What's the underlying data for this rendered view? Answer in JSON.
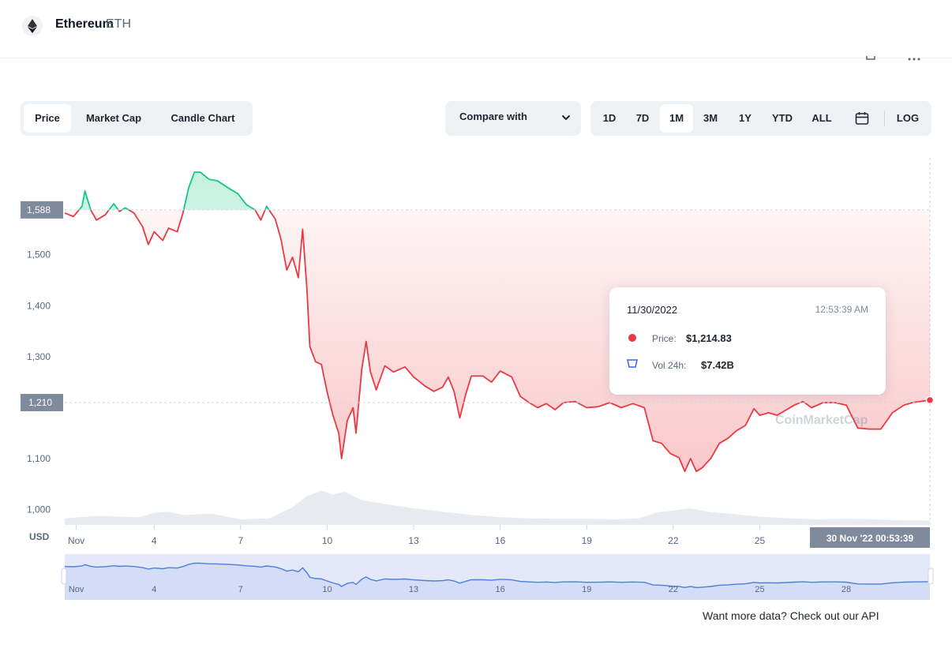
{
  "header": {
    "coin_name": "Ethereum",
    "coin_symbol": "ETH",
    "logo_icon": "ethereum-icon",
    "toolbar_icons": [
      "fullscreen-icon",
      "more-icon"
    ]
  },
  "tabs": [
    {
      "label": "Price",
      "active": true
    },
    {
      "label": "Market Cap",
      "active": false
    },
    {
      "label": "Candle Chart",
      "active": false
    }
  ],
  "compare": {
    "label": "Compare with",
    "icon": "chevron-down-icon"
  },
  "ranges": [
    {
      "label": "1D",
      "active": false
    },
    {
      "label": "7D",
      "active": false
    },
    {
      "label": "1M",
      "active": true
    },
    {
      "label": "3M",
      "active": false
    },
    {
      "label": "1Y",
      "active": false
    },
    {
      "label": "YTD",
      "active": false
    },
    {
      "label": "ALL",
      "active": false
    }
  ],
  "calendar_icon": "calendar-icon",
  "log_label": "LOG",
  "tooltip": {
    "date": "11/30/2022",
    "time": "12:53:39 AM",
    "price_label": "Price:",
    "price_value": "$1,214.83",
    "vol_label": "Vol 24h:",
    "vol_value": "$7.42B"
  },
  "watermark": "CoinMarketCap",
  "api_note": "Want more data? Check out our API",
  "colors": {
    "up": "#16c784",
    "down": "#ea3943",
    "volume": "#e7eaf0",
    "navigator": "#4f7de0",
    "tag_bg": "#808a9d"
  },
  "chart_data": {
    "type": "line",
    "unit_label": "USD",
    "y_ticks": [
      "1,000",
      "1,100",
      "1,300",
      "1,400",
      "1,500"
    ],
    "ylim": [
      970,
      1690
    ],
    "reference_price": 1588,
    "reference_label": "1,588",
    "current_price": 1210,
    "current_label": "1,210",
    "x_ticks": [
      {
        "label": "Nov",
        "x": 1.3
      },
      {
        "label": "4",
        "x": 4
      },
      {
        "label": "7",
        "x": 7
      },
      {
        "label": "10",
        "x": 10
      },
      {
        "label": "13",
        "x": 13
      },
      {
        "label": "16",
        "x": 16
      },
      {
        "label": "19",
        "x": 19
      },
      {
        "label": "22",
        "x": 22
      },
      {
        "label": "25",
        "x": 25
      }
    ],
    "navigator_ticks": [
      {
        "label": "Nov",
        "x": 1.3
      },
      {
        "label": "4",
        "x": 4
      },
      {
        "label": "7",
        "x": 7
      },
      {
        "label": "10",
        "x": 10
      },
      {
        "label": "13",
        "x": 13
      },
      {
        "label": "16",
        "x": 16
      },
      {
        "label": "19",
        "x": 19
      },
      {
        "label": "22",
        "x": 22
      },
      {
        "label": "25",
        "x": 25
      },
      {
        "label": "28",
        "x": 28
      }
    ],
    "xlim": [
      0.9,
      30.9
    ],
    "crosshair_label": "30 Nov '22   00:53:39",
    "series": [
      {
        "points": [
          [
            0.9,
            1582
          ],
          [
            1.2,
            1575
          ],
          [
            1.5,
            1595
          ],
          [
            1.6,
            1625
          ],
          [
            1.8,
            1588
          ],
          [
            2.0,
            1568
          ],
          [
            2.3,
            1578
          ],
          [
            2.6,
            1600
          ],
          [
            2.8,
            1585
          ],
          [
            3.0,
            1592
          ],
          [
            3.3,
            1582
          ],
          [
            3.6,
            1555
          ],
          [
            3.8,
            1520
          ],
          [
            4.0,
            1545
          ],
          [
            4.3,
            1528
          ],
          [
            4.5,
            1552
          ],
          [
            4.8,
            1545
          ],
          [
            5.0,
            1582
          ],
          [
            5.2,
            1632
          ],
          [
            5.4,
            1662
          ],
          [
            5.6,
            1662
          ],
          [
            5.9,
            1648
          ],
          [
            6.2,
            1645
          ],
          [
            6.6,
            1630
          ],
          [
            6.9,
            1620
          ],
          [
            7.2,
            1598
          ],
          [
            7.5,
            1588
          ],
          [
            7.7,
            1568
          ],
          [
            7.9,
            1595
          ],
          [
            8.2,
            1570
          ],
          [
            8.4,
            1530
          ],
          [
            8.6,
            1470
          ],
          [
            8.8,
            1495
          ],
          [
            9.0,
            1455
          ],
          [
            9.15,
            1550
          ],
          [
            9.3,
            1430
          ],
          [
            9.4,
            1320
          ],
          [
            9.6,
            1290
          ],
          [
            9.8,
            1285
          ],
          [
            10.0,
            1230
          ],
          [
            10.2,
            1185
          ],
          [
            10.4,
            1150
          ],
          [
            10.5,
            1100
          ],
          [
            10.7,
            1175
          ],
          [
            10.9,
            1200
          ],
          [
            11.0,
            1150
          ],
          [
            11.2,
            1275
          ],
          [
            11.35,
            1330
          ],
          [
            11.5,
            1270
          ],
          [
            11.7,
            1235
          ],
          [
            12.0,
            1282
          ],
          [
            12.3,
            1270
          ],
          [
            12.7,
            1280
          ],
          [
            13.0,
            1260
          ],
          [
            13.4,
            1242
          ],
          [
            13.7,
            1232
          ],
          [
            14.0,
            1240
          ],
          [
            14.2,
            1260
          ],
          [
            14.4,
            1232
          ],
          [
            14.6,
            1180
          ],
          [
            14.8,
            1225
          ],
          [
            15.0,
            1262
          ],
          [
            15.4,
            1262
          ],
          [
            15.7,
            1250
          ],
          [
            16.0,
            1272
          ],
          [
            16.4,
            1260
          ],
          [
            16.7,
            1222
          ],
          [
            17.0,
            1210
          ],
          [
            17.3,
            1200
          ],
          [
            17.6,
            1208
          ],
          [
            17.9,
            1196
          ],
          [
            18.2,
            1210
          ],
          [
            18.6,
            1212
          ],
          [
            19.0,
            1200
          ],
          [
            19.4,
            1202
          ],
          [
            19.8,
            1210
          ],
          [
            20.2,
            1200
          ],
          [
            20.6,
            1208
          ],
          [
            21.0,
            1200
          ],
          [
            21.3,
            1135
          ],
          [
            21.6,
            1130
          ],
          [
            21.9,
            1110
          ],
          [
            22.2,
            1102
          ],
          [
            22.4,
            1075
          ],
          [
            22.6,
            1100
          ],
          [
            22.8,
            1075
          ],
          [
            23.0,
            1082
          ],
          [
            23.3,
            1100
          ],
          [
            23.6,
            1130
          ],
          [
            23.9,
            1140
          ],
          [
            24.2,
            1155
          ],
          [
            24.5,
            1165
          ],
          [
            24.8,
            1198
          ],
          [
            25.0,
            1185
          ],
          [
            25.3,
            1190
          ],
          [
            25.6,
            1185
          ],
          [
            25.9,
            1195
          ],
          [
            26.2,
            1205
          ],
          [
            26.5,
            1212
          ],
          [
            26.8,
            1200
          ],
          [
            27.2,
            1210
          ],
          [
            27.6,
            1210
          ],
          [
            28.0,
            1205
          ],
          [
            28.4,
            1160
          ],
          [
            28.8,
            1158
          ],
          [
            29.2,
            1158
          ],
          [
            29.6,
            1190
          ],
          [
            30.0,
            1205
          ],
          [
            30.3,
            1210
          ],
          [
            30.9,
            1214.83
          ]
        ]
      }
    ],
    "volume": [
      [
        0.9,
        0.12
      ],
      [
        2.0,
        0.16
      ],
      [
        3.5,
        0.14
      ],
      [
        4.0,
        0.22
      ],
      [
        4.5,
        0.24
      ],
      [
        5.0,
        0.18
      ],
      [
        6.0,
        0.2
      ],
      [
        7.0,
        0.1
      ],
      [
        8.0,
        0.12
      ],
      [
        8.8,
        0.32
      ],
      [
        9.3,
        0.52
      ],
      [
        9.8,
        0.62
      ],
      [
        10.2,
        0.55
      ],
      [
        10.6,
        0.6
      ],
      [
        11.2,
        0.45
      ],
      [
        12.0,
        0.38
      ],
      [
        13.0,
        0.3
      ],
      [
        14.0,
        0.24
      ],
      [
        15.0,
        0.18
      ],
      [
        16.0,
        0.14
      ],
      [
        17.0,
        0.12
      ],
      [
        18.0,
        0.11
      ],
      [
        19.0,
        0.11
      ],
      [
        20.0,
        0.1
      ],
      [
        20.8,
        0.12
      ],
      [
        21.4,
        0.22
      ],
      [
        22.0,
        0.26
      ],
      [
        22.6,
        0.3
      ],
      [
        23.2,
        0.24
      ],
      [
        24.0,
        0.2
      ],
      [
        25.0,
        0.15
      ],
      [
        26.0,
        0.12
      ],
      [
        27.0,
        0.1
      ],
      [
        28.0,
        0.11
      ],
      [
        29.0,
        0.1
      ],
      [
        30.0,
        0.08
      ],
      [
        30.9,
        0.08
      ]
    ]
  }
}
